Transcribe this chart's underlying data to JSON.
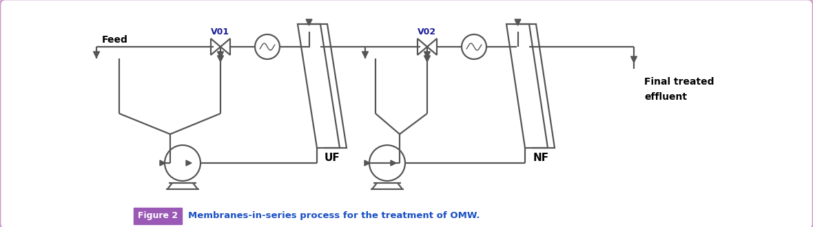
{
  "bg_color": "#ffffff",
  "border_color": "#cc99cc",
  "line_color": "#555555",
  "line_width": 1.6,
  "fig_caption": "Membranes-in-series process for the treatment of OMW.",
  "fig_label": "Figure 2",
  "fig_label_bg": "#9b59b6",
  "fig_label_color": "#ffffff",
  "caption_color": "#1a4fc4",
  "label_UF": "UF",
  "label_NF": "NF",
  "label_V01": "V01",
  "label_V02": "V02",
  "label_Feed": "Feed",
  "label_final": "Final treated\neffluent"
}
